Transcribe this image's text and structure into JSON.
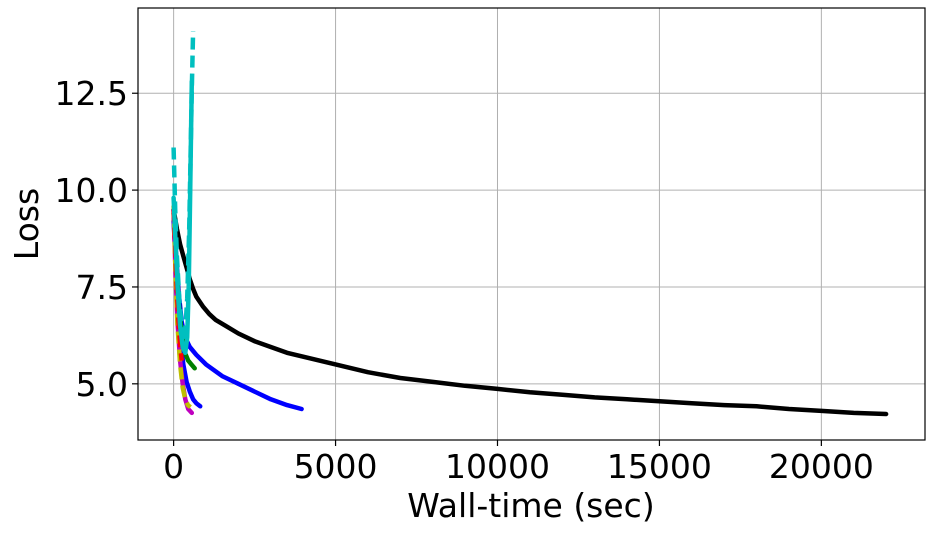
{
  "chart_data": {
    "type": "line",
    "xlabel": "Wall-time (sec)",
    "ylabel": "Loss",
    "xlim": [
      -1100,
      23200
    ],
    "ylim": [
      3.55,
      14.7
    ],
    "xticks": [
      0,
      5000,
      10000,
      15000,
      20000
    ],
    "xtick_labels": [
      "0",
      "5000",
      "10000",
      "15000",
      "20000"
    ],
    "yticks": [
      5.0,
      7.5,
      10.0,
      12.5
    ],
    "ytick_labels": [
      "5.0",
      "7.5",
      "10.0",
      "12.5"
    ],
    "grid": true,
    "series": [
      {
        "color": "#000000",
        "style": "solid",
        "points": [
          [
            0,
            9.5
          ],
          [
            100,
            9.0
          ],
          [
            200,
            8.6
          ],
          [
            300,
            8.3
          ],
          [
            400,
            8.0
          ],
          [
            500,
            7.7
          ],
          [
            600,
            7.45
          ],
          [
            700,
            7.25
          ],
          [
            900,
            7.0
          ],
          [
            1100,
            6.8
          ],
          [
            1300,
            6.65
          ],
          [
            1600,
            6.5
          ],
          [
            2000,
            6.3
          ],
          [
            2500,
            6.1
          ],
          [
            3000,
            5.95
          ],
          [
            3500,
            5.8
          ],
          [
            4000,
            5.7
          ],
          [
            5000,
            5.5
          ],
          [
            6000,
            5.3
          ],
          [
            7000,
            5.15
          ],
          [
            8000,
            5.05
          ],
          [
            9000,
            4.95
          ],
          [
            10000,
            4.87
          ],
          [
            11000,
            4.78
          ],
          [
            12000,
            4.72
          ],
          [
            13000,
            4.65
          ],
          [
            14000,
            4.6
          ],
          [
            15000,
            4.55
          ],
          [
            16000,
            4.5
          ],
          [
            17000,
            4.45
          ],
          [
            18000,
            4.42
          ],
          [
            19000,
            4.35
          ],
          [
            20000,
            4.3
          ],
          [
            21000,
            4.25
          ],
          [
            22000,
            4.22
          ]
        ]
      },
      {
        "color": "#0000ff",
        "style": "solid",
        "points": [
          [
            0,
            9.5
          ],
          [
            80,
            8.3
          ],
          [
            150,
            7.4
          ],
          [
            250,
            6.6
          ],
          [
            350,
            6.2
          ],
          [
            500,
            5.95
          ],
          [
            700,
            5.75
          ],
          [
            1000,
            5.5
          ],
          [
            1500,
            5.2
          ],
          [
            2000,
            5.0
          ],
          [
            2500,
            4.8
          ],
          [
            3000,
            4.6
          ],
          [
            3500,
            4.45
          ],
          [
            3950,
            4.35
          ]
        ]
      },
      {
        "color": "#0000ff",
        "style": "solid",
        "points": [
          [
            0,
            9.2
          ],
          [
            100,
            7.6
          ],
          [
            200,
            6.2
          ],
          [
            300,
            5.5
          ],
          [
            400,
            5.05
          ],
          [
            500,
            4.8
          ],
          [
            600,
            4.6
          ],
          [
            700,
            4.5
          ],
          [
            820,
            4.42
          ]
        ]
      },
      {
        "color": "#008000",
        "style": "solid",
        "points": [
          [
            0,
            9.4
          ],
          [
            80,
            8.2
          ],
          [
            150,
            7.2
          ],
          [
            250,
            6.3
          ],
          [
            350,
            5.8
          ],
          [
            450,
            5.6
          ],
          [
            550,
            5.5
          ],
          [
            650,
            5.4
          ]
        ]
      },
      {
        "color": "#bf00bf",
        "style": "solid",
        "points": [
          [
            0,
            9.5
          ],
          [
            60,
            7.8
          ],
          [
            120,
            6.6
          ],
          [
            200,
            5.6
          ],
          [
            280,
            5.0
          ],
          [
            360,
            4.6
          ],
          [
            450,
            4.35
          ],
          [
            560,
            4.25
          ]
        ]
      },
      {
        "color": "#bfbf00",
        "style": "dashed",
        "points": [
          [
            0,
            9.6
          ],
          [
            60,
            7.8
          ],
          [
            120,
            6.5
          ],
          [
            200,
            5.5
          ],
          [
            280,
            4.9
          ],
          [
            360,
            4.6
          ],
          [
            440,
            4.45
          ],
          [
            520,
            4.4
          ]
        ]
      },
      {
        "color": "#ff0000",
        "style": "dashed",
        "points": [
          [
            0,
            9.5
          ],
          [
            50,
            8.5
          ],
          [
            100,
            7.4
          ],
          [
            150,
            6.6
          ],
          [
            200,
            6.0
          ],
          [
            250,
            5.6
          ]
        ]
      },
      {
        "color": "#00bfbf",
        "style": "solid",
        "points": [
          [
            0,
            9.8
          ],
          [
            60,
            8.6
          ],
          [
            130,
            7.4
          ],
          [
            200,
            6.5
          ],
          [
            280,
            5.95
          ],
          [
            360,
            5.8
          ],
          [
            420,
            6.2
          ],
          [
            470,
            7.6
          ],
          [
            510,
            9.8
          ],
          [
            540,
            11.6
          ],
          [
            560,
            12.8
          ]
        ]
      },
      {
        "color": "#00bfbf",
        "style": "dashed",
        "points": [
          [
            0,
            11.1
          ],
          [
            50,
            9.5
          ],
          [
            100,
            8.3
          ],
          [
            180,
            7.1
          ],
          [
            260,
            6.4
          ],
          [
            340,
            6.1
          ],
          [
            420,
            7.2
          ],
          [
            480,
            9.0
          ],
          [
            520,
            10.8
          ],
          [
            560,
            12.6
          ],
          [
            600,
            14.1
          ]
        ]
      }
    ]
  }
}
